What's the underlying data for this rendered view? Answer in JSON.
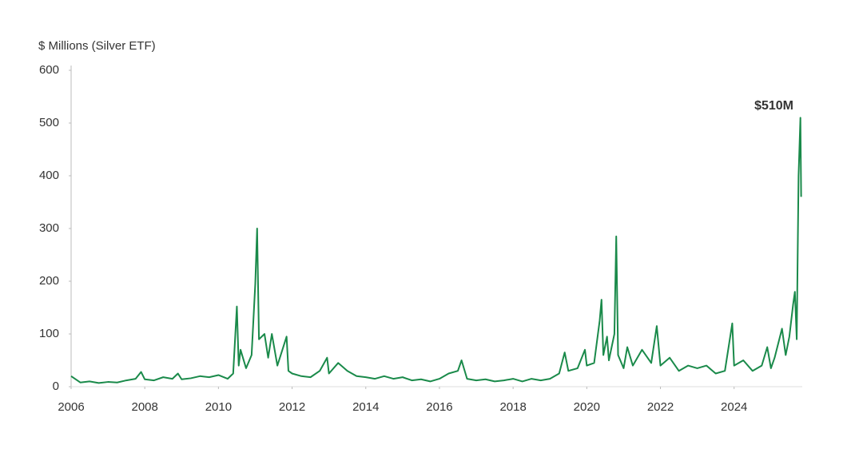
{
  "chart_data": {
    "type": "line",
    "y_axis_label": "$ Millions (Silver ETF)",
    "annotation": "$510M",
    "color": "#1a8a4a",
    "x": [
      2006.0,
      2006.25,
      2006.5,
      2006.75,
      2007.0,
      2007.25,
      2007.5,
      2007.75,
      2007.9,
      2008.0,
      2008.25,
      2008.5,
      2008.75,
      2008.9,
      2009.0,
      2009.25,
      2009.5,
      2009.75,
      2010.0,
      2010.25,
      2010.4,
      2010.5,
      2010.55,
      2010.6,
      2010.75,
      2010.9,
      2011.0,
      2011.05,
      2011.1,
      2011.25,
      2011.35,
      2011.45,
      2011.6,
      2011.85,
      2011.9,
      2012.0,
      2012.25,
      2012.5,
      2012.75,
      2012.95,
      2013.0,
      2013.25,
      2013.5,
      2013.75,
      2014.0,
      2014.25,
      2014.5,
      2014.75,
      2015.0,
      2015.25,
      2015.5,
      2015.75,
      2016.0,
      2016.25,
      2016.5,
      2016.6,
      2016.75,
      2017.0,
      2017.25,
      2017.5,
      2017.75,
      2018.0,
      2018.25,
      2018.5,
      2018.75,
      2019.0,
      2019.25,
      2019.4,
      2019.5,
      2019.75,
      2019.95,
      2020.0,
      2020.2,
      2020.35,
      2020.4,
      2020.45,
      2020.55,
      2020.6,
      2020.75,
      2020.8,
      2020.85,
      2021.0,
      2021.1,
      2021.25,
      2021.5,
      2021.75,
      2021.9,
      2022.0,
      2022.25,
      2022.5,
      2022.75,
      2023.0,
      2023.25,
      2023.5,
      2023.75,
      2023.95,
      2024.0,
      2024.25,
      2024.5,
      2024.75,
      2024.9,
      2025.0,
      2025.1,
      2025.3,
      2025.4,
      2025.5,
      2025.6,
      2025.65,
      2025.7,
      2025.75,
      2025.8,
      2025.82
    ],
    "series": [
      {
        "name": "Silver ETF",
        "color": "#1a8a4a",
        "values": [
          20,
          8,
          10,
          7,
          9,
          8,
          12,
          15,
          28,
          14,
          12,
          18,
          15,
          25,
          14,
          16,
          20,
          18,
          22,
          15,
          25,
          152,
          40,
          70,
          35,
          60,
          195,
          300,
          90,
          100,
          55,
          100,
          40,
          95,
          30,
          25,
          20,
          18,
          30,
          55,
          25,
          45,
          30,
          20,
          18,
          15,
          20,
          15,
          18,
          12,
          14,
          10,
          15,
          25,
          30,
          50,
          15,
          12,
          14,
          10,
          12,
          15,
          10,
          15,
          12,
          15,
          25,
          65,
          30,
          35,
          70,
          40,
          45,
          125,
          165,
          60,
          95,
          50,
          100,
          285,
          60,
          35,
          75,
          40,
          70,
          45,
          115,
          40,
          55,
          30,
          40,
          35,
          40,
          25,
          30,
          120,
          40,
          50,
          30,
          40,
          75,
          35,
          55,
          110,
          60,
          95,
          155,
          180,
          90,
          400,
          510,
          360
        ]
      }
    ],
    "xlim": [
      2006,
      2025.85
    ],
    "xticks": [
      2006,
      2008,
      2010,
      2012,
      2014,
      2016,
      2018,
      2020,
      2022,
      2024
    ],
    "ylim": [
      0,
      600
    ],
    "yticks": [
      0,
      100,
      200,
      300,
      400,
      500,
      600
    ],
    "grid": false
  }
}
